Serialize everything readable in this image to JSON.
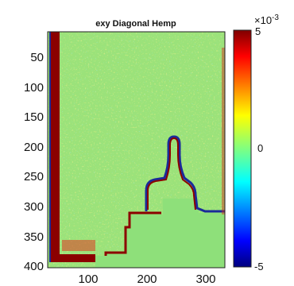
{
  "chart_data": {
    "type": "heatmap",
    "title": "exy Diagonal Hemp",
    "xlabel": "",
    "ylabel": "",
    "x_ticks": [
      100,
      200,
      300
    ],
    "y_ticks": [
      50,
      100,
      150,
      200,
      250,
      300,
      350,
      400
    ],
    "xlim": [
      60,
      360
    ],
    "ylim": [
      15,
      405
    ],
    "y_reversed": true,
    "colorbar": {
      "min": -5,
      "max": 5,
      "ticks": [
        5,
        0,
        -5
      ],
      "tick_labels": [
        "5",
        "0",
        "-5"
      ],
      "multiplier_label": "×10",
      "multiplier_exponent": "-3",
      "colormap": "jet"
    },
    "background_value_approx": 0.0,
    "features": [
      {
        "name": "left vertical edge band",
        "value_approx": 5
      },
      {
        "name": "bottom-left edge band",
        "value_approx": 5
      },
      {
        "name": "step outline",
        "value_approx": 5
      },
      {
        "name": "bottle-shaped outline",
        "value_approx": 5
      },
      {
        "name": "masked region",
        "value_approx": 0
      }
    ],
    "colors": {
      "field": "#9be27a",
      "hot": "#8b0000",
      "red": "#d22a18",
      "yellow": "#e8e35a",
      "cold": "#1a2a9a",
      "cyan": "#3fd3e6"
    }
  }
}
